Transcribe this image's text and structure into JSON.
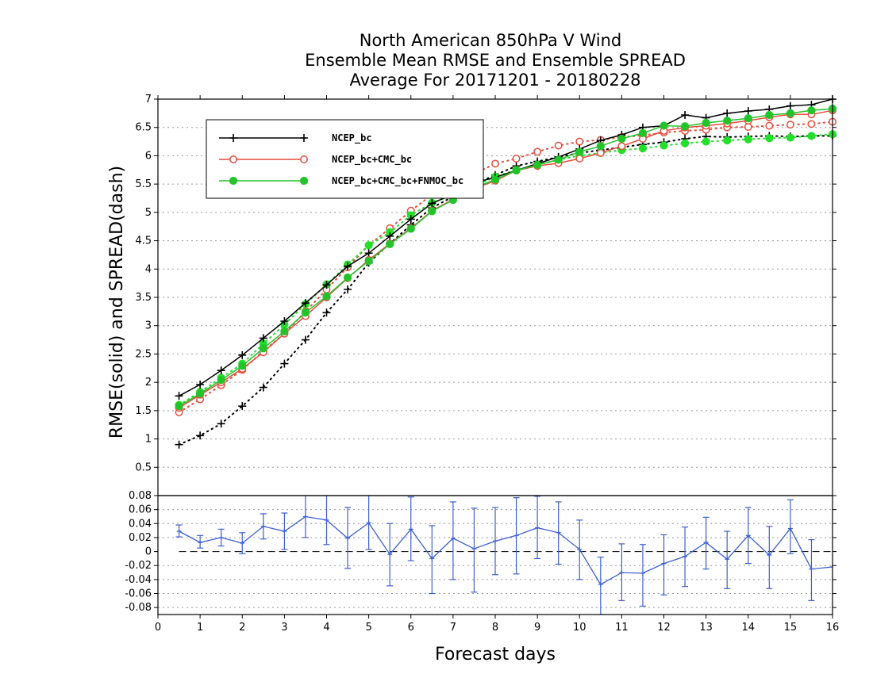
{
  "chart_data": [
    {
      "type": "line",
      "title": [
        "North American 850hPa V Wind",
        "Ensemble Mean RMSE and Ensemble SPREAD",
        "Average For 20171201 - 20180228"
      ],
      "ylabel": "RMSE(solid)  and  SPREAD(dash)",
      "xlim": [
        0,
        16
      ],
      "ylim": [
        0,
        7
      ],
      "yticks": [
        0.5,
        1,
        1.5,
        2,
        2.5,
        3,
        3.5,
        4,
        4.5,
        5,
        5.5,
        6,
        6.5,
        7
      ],
      "ytick_labels": [
        "0.5",
        "1",
        "1.5",
        "2",
        "2.5",
        "3",
        "3.5",
        "4",
        "4.5",
        "5",
        "5.5",
        "6",
        "6.5",
        "7"
      ],
      "grid": true,
      "legend_position": "top-left",
      "x": [
        0.5,
        1,
        1.5,
        2,
        2.5,
        3,
        3.5,
        4,
        4.5,
        5,
        5.5,
        6,
        6.5,
        7,
        7.5,
        8,
        8.5,
        9,
        9.5,
        10,
        10.5,
        11,
        11.5,
        12,
        12.5,
        13,
        13.5,
        14,
        14.5,
        15,
        15.5,
        16
      ],
      "series": [
        {
          "name": "NCEP_bc",
          "kind": "rmse",
          "style": "solid",
          "marker": "plus",
          "color": "#000000",
          "values": [
            1.76,
            1.96,
            2.21,
            2.48,
            2.78,
            3.08,
            3.4,
            3.72,
            4.05,
            4.28,
            4.58,
            4.88,
            5.16,
            5.32,
            5.52,
            5.62,
            5.74,
            5.86,
            5.98,
            6.12,
            6.27,
            6.37,
            6.5,
            6.53,
            6.72,
            6.67,
            6.75,
            6.79,
            6.82,
            6.88,
            6.9,
            7.0
          ]
        },
        {
          "name": "",
          "kind": "spread",
          "style": "dot",
          "marker": "plus",
          "color": "#000000",
          "values": [
            0.9,
            1.06,
            1.27,
            1.58,
            1.91,
            2.33,
            2.75,
            3.23,
            3.64,
            4.11,
            4.45,
            4.78,
            5.08,
            5.28,
            5.5,
            5.66,
            5.82,
            5.9,
            5.98,
            6.05,
            6.1,
            6.15,
            6.2,
            6.24,
            6.3,
            6.34,
            6.33,
            6.34,
            6.35,
            6.34,
            6.35,
            6.35
          ]
        },
        {
          "name": "NCEP_bc+CMC_bc",
          "kind": "rmse",
          "style": "solid",
          "marker": "open-circle",
          "color": "#e84c3d",
          "values": [
            1.55,
            1.78,
            2.0,
            2.24,
            2.53,
            2.86,
            3.17,
            3.5,
            3.84,
            4.16,
            4.45,
            4.72,
            5.03,
            5.23,
            5.42,
            5.56,
            5.74,
            5.82,
            5.87,
            5.95,
            6.05,
            6.17,
            6.3,
            6.44,
            6.5,
            6.53,
            6.57,
            6.62,
            6.68,
            6.73,
            6.73,
            6.8
          ]
        },
        {
          "name": "",
          "kind": "spread",
          "style": "dot",
          "marker": "open-circle",
          "color": "#e84c3d",
          "values": [
            1.47,
            1.7,
            1.95,
            2.22,
            2.55,
            2.86,
            3.25,
            3.64,
            4.03,
            4.42,
            4.72,
            5.03,
            5.31,
            5.47,
            5.68,
            5.86,
            5.95,
            6.07,
            6.18,
            6.25,
            6.28,
            6.33,
            6.36,
            6.41,
            6.44,
            6.46,
            6.5,
            6.51,
            6.53,
            6.55,
            6.56,
            6.6
          ]
        },
        {
          "name": "NCEP_bc+CMC_bc+FNMOC_bc",
          "kind": "rmse",
          "style": "solid",
          "marker": "filled-circle",
          "color": "#22c42a",
          "values": [
            1.58,
            1.8,
            2.04,
            2.29,
            2.6,
            2.9,
            3.23,
            3.52,
            3.85,
            4.14,
            4.44,
            4.71,
            5.02,
            5.22,
            5.43,
            5.58,
            5.74,
            5.84,
            5.93,
            6.07,
            6.17,
            6.3,
            6.4,
            6.53,
            6.52,
            6.58,
            6.62,
            6.66,
            6.72,
            6.75,
            6.8,
            6.83
          ]
        },
        {
          "name": "",
          "kind": "spread",
          "style": "dot",
          "marker": "filled-circle",
          "color": "#22e02a",
          "values": [
            1.6,
            1.83,
            2.08,
            2.33,
            2.68,
            3.02,
            3.38,
            3.73,
            4.08,
            4.42,
            4.65,
            4.95,
            5.17,
            5.3,
            5.46,
            5.63,
            5.75,
            5.84,
            5.93,
            6.0,
            6.05,
            6.1,
            6.13,
            6.18,
            6.22,
            6.25,
            6.27,
            6.29,
            6.31,
            6.32,
            6.35,
            6.38
          ]
        }
      ]
    },
    {
      "type": "line",
      "title": "",
      "xlabel": "Forecast days",
      "xlim": [
        0,
        16
      ],
      "ylim": [
        -0.09,
        0.08
      ],
      "xticks": [
        0,
        1,
        2,
        3,
        4,
        5,
        6,
        7,
        8,
        9,
        10,
        11,
        12,
        13,
        14,
        15,
        16
      ],
      "xtick_labels": [
        "0",
        "1",
        "2",
        "3",
        "4",
        "5",
        "6",
        "7",
        "8",
        "9",
        "10",
        "11",
        "12",
        "13",
        "14",
        "15",
        "16"
      ],
      "yticks": [
        -0.08,
        -0.06,
        -0.04,
        -0.02,
        0,
        0.02,
        0.04,
        0.06,
        0.08
      ],
      "ytick_labels": [
        "-0.08",
        "-0.06",
        "-0.04",
        "-0.02",
        "0",
        "0.02",
        "0.04",
        "0.06",
        "0.08"
      ],
      "reference_line": 0,
      "grid": true,
      "x": [
        0.5,
        1,
        1.5,
        2,
        2.5,
        3,
        3.5,
        4,
        4.5,
        5,
        5.5,
        6,
        6.5,
        7,
        7.5,
        8,
        8.5,
        9,
        9.5,
        10,
        10.5,
        11,
        11.5,
        12,
        12.5,
        13,
        13.5,
        14,
        14.5,
        15,
        15.5,
        16
      ],
      "series": [
        {
          "name": "",
          "color": "#3c5fd2",
          "values": [
            0.029,
            0.013,
            0.02,
            0.012,
            0.036,
            0.029,
            0.05,
            0.045,
            0.019,
            0.041,
            -0.004,
            0.032,
            -0.01,
            0.019,
            0.004,
            0.015,
            0.023,
            0.034,
            0.027,
            0.003,
            -0.047,
            -0.03,
            -0.031,
            -0.017,
            -0.007,
            0.013,
            -0.011,
            0.023,
            -0.005,
            0.033,
            -0.025,
            -0.022
          ],
          "error_low": [
            0.021,
            0.005,
            0.008,
            -0.003,
            0.018,
            0.003,
            0.02,
            0.01,
            -0.024,
            0.003,
            -0.049,
            -0.013,
            -0.06,
            -0.04,
            -0.058,
            -0.033,
            -0.032,
            -0.01,
            -0.018,
            -0.04,
            -0.09,
            -0.07,
            -0.078,
            -0.062,
            -0.05,
            -0.025,
            -0.053,
            -0.017,
            -0.053,
            -0.003,
            -0.07,
            null
          ],
          "error_high": [
            0.038,
            0.023,
            0.032,
            0.027,
            0.054,
            0.055,
            0.082,
            0.082,
            0.063,
            0.08,
            0.04,
            0.078,
            0.037,
            0.071,
            0.062,
            0.063,
            0.077,
            0.079,
            0.071,
            0.045,
            -0.008,
            0.011,
            0.01,
            0.024,
            0.035,
            0.049,
            0.029,
            0.063,
            0.036,
            0.074,
            0.017,
            null
          ]
        }
      ]
    }
  ]
}
